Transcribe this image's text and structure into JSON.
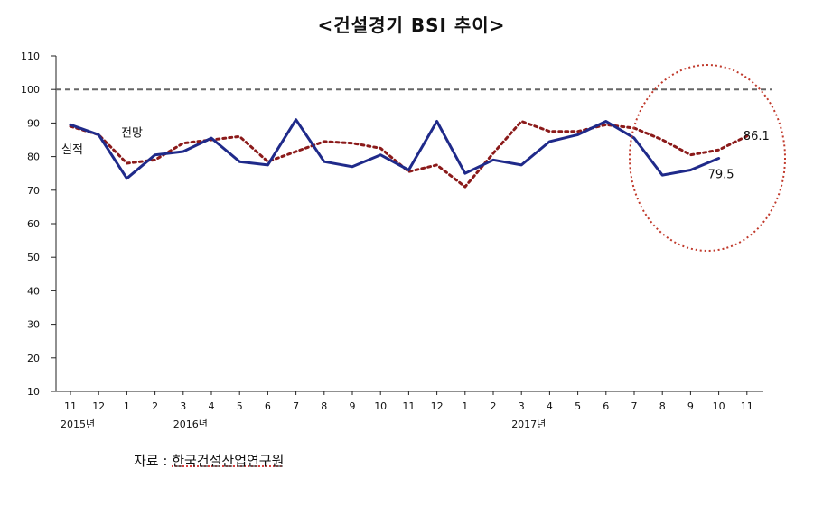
{
  "chart_data": {
    "type": "line",
    "title": "<건설경기 BSI 추이>",
    "ylim": [
      10,
      110
    ],
    "yticks": [
      10,
      20,
      30,
      40,
      50,
      60,
      70,
      80,
      90,
      100,
      110
    ],
    "reference_line": 100,
    "categories": [
      "11",
      "12",
      "1",
      "2",
      "3",
      "4",
      "5",
      "6",
      "7",
      "8",
      "9",
      "10",
      "11",
      "12",
      "1",
      "2",
      "3",
      "4",
      "5",
      "6",
      "7",
      "8",
      "9",
      "10",
      "11"
    ],
    "year_labels": [
      {
        "index": 0,
        "label": "2015년"
      },
      {
        "index": 4,
        "label": "2016년"
      },
      {
        "index": 16,
        "label": "2017년"
      }
    ],
    "series": [
      {
        "name": "실적",
        "color": "#1f2a8a",
        "style": "solid",
        "values": [
          89.5,
          86.5,
          73.5,
          80.5,
          81.5,
          85.5,
          78.5,
          77.5,
          91,
          78.5,
          77,
          80.5,
          76,
          90.5,
          75,
          79,
          77.5,
          84.5,
          86.5,
          90.5,
          85.5,
          74.5,
          76,
          79.5,
          null
        ]
      },
      {
        "name": "전망",
        "color": "#8b1a1a",
        "style": "dotted",
        "values": [
          89,
          86.5,
          78,
          79,
          84,
          85,
          86,
          78.5,
          81.5,
          84.5,
          84,
          82.5,
          75.5,
          77.5,
          71,
          81,
          90.5,
          87.5,
          87.5,
          89.5,
          88.5,
          85,
          80.5,
          82,
          86.1
        ]
      }
    ],
    "annotations": {
      "actual_label": "실적",
      "forecast_label": "전망",
      "actual_end": "79.5",
      "forecast_end": "86.1"
    },
    "highlight_circle": {
      "color": "#c0392b",
      "style": "dotted"
    }
  },
  "source": {
    "label": "자료 : ",
    "org": "한국건설산업연구원"
  }
}
